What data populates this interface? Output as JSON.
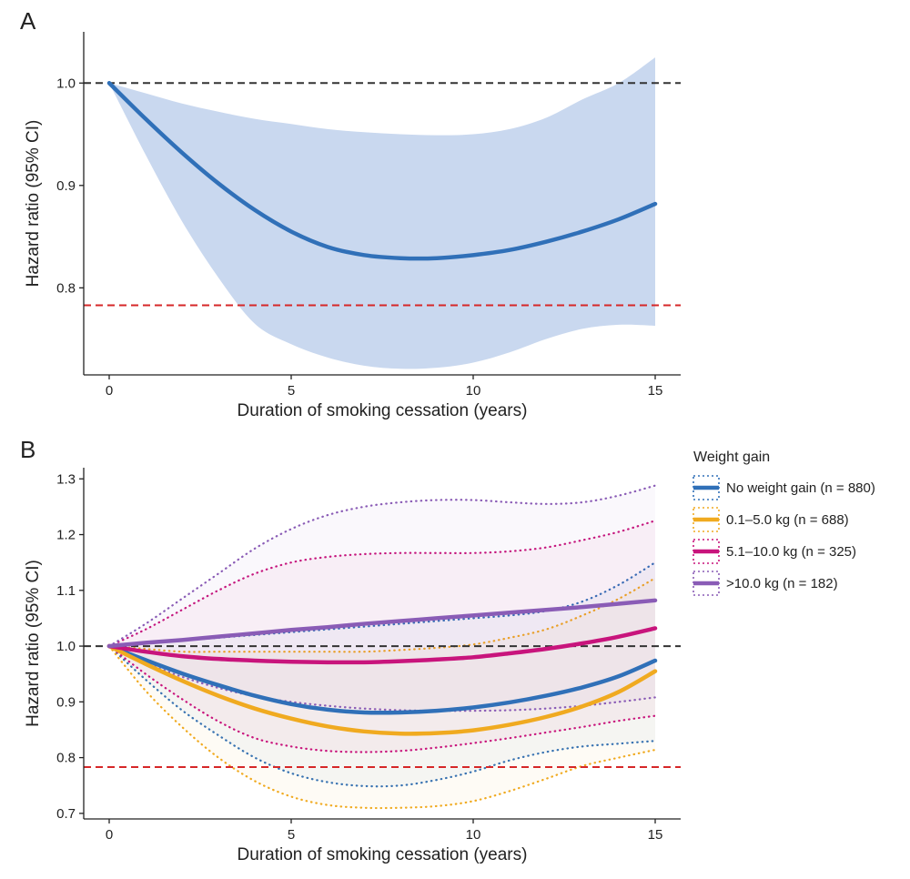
{
  "chart_data": [
    {
      "panel": "A",
      "type": "line",
      "xlabel": "Duration of smoking cessation (years)",
      "ylabel": "Hazard ratio (95% CI)",
      "xlim": [
        -0.7,
        15.7
      ],
      "ylim": [
        0.715,
        1.05
      ],
      "xticks": [
        0,
        5,
        10,
        15
      ],
      "yticks": [
        0.8,
        0.9,
        1.0
      ],
      "ytick_labels": [
        "0.8",
        "0.9",
        "1.0"
      ],
      "reference_lines": [
        {
          "y": 1.0,
          "style": "dashed",
          "color": "#333333"
        },
        {
          "y": 0.783,
          "style": "dashed",
          "color": "#d62728"
        }
      ],
      "series": [
        {
          "color": "#3070b8",
          "ci_color": "#c9d8ef",
          "x": [
            0,
            1,
            2,
            3,
            4,
            5,
            6,
            7,
            8,
            9,
            10,
            11,
            12,
            13,
            14,
            15
          ],
          "y": [
            1.0,
            0.965,
            0.932,
            0.902,
            0.876,
            0.855,
            0.84,
            0.832,
            0.829,
            0.829,
            0.832,
            0.837,
            0.845,
            0.855,
            0.867,
            0.882
          ],
          "lower": [
            1.0,
            0.93,
            0.865,
            0.81,
            0.765,
            0.745,
            0.732,
            0.724,
            0.721,
            0.722,
            0.727,
            0.737,
            0.75,
            0.76,
            0.764,
            0.763
          ],
          "upper": [
            1.0,
            0.99,
            0.98,
            0.972,
            0.965,
            0.96,
            0.955,
            0.952,
            0.95,
            0.949,
            0.95,
            0.955,
            0.966,
            0.984,
            1.0,
            1.025
          ]
        }
      ]
    },
    {
      "panel": "B",
      "type": "line",
      "xlabel": "Duration of smoking cessation (years)",
      "ylabel": "Hazard ratio (95% CI)",
      "xlim": [
        -0.7,
        15.7
      ],
      "ylim": [
        0.69,
        1.32
      ],
      "xticks": [
        0,
        5,
        10,
        15
      ],
      "yticks": [
        0.7,
        0.8,
        0.9,
        1.0,
        1.1,
        1.2,
        1.3
      ],
      "ytick_labels": [
        "0.7",
        "0.8",
        "0.9",
        "1.0",
        "1.1",
        "1.2",
        "1.3"
      ],
      "reference_lines": [
        {
          "y": 1.0,
          "style": "dashed",
          "color": "#333333"
        },
        {
          "y": 0.783,
          "style": "dashed",
          "color": "#d62728"
        }
      ],
      "legend": {
        "title": "Weight gain",
        "placement": "right"
      },
      "series": [
        {
          "name": "No weight gain (n = 880)",
          "color": "#3070b8",
          "x": [
            0,
            1,
            2,
            3,
            4,
            5,
            6,
            7,
            8,
            9,
            10,
            11,
            12,
            13,
            14,
            15
          ],
          "y": [
            1.0,
            0.975,
            0.951,
            0.93,
            0.911,
            0.896,
            0.886,
            0.881,
            0.881,
            0.884,
            0.89,
            0.899,
            0.911,
            0.926,
            0.946,
            0.974
          ],
          "lower": [
            1.0,
            0.94,
            0.885,
            0.84,
            0.8,
            0.772,
            0.756,
            0.749,
            0.75,
            0.76,
            0.775,
            0.795,
            0.81,
            0.82,
            0.825,
            0.83
          ],
          "upper": [
            1.0,
            1.005,
            1.01,
            1.015,
            1.02,
            1.025,
            1.03,
            1.035,
            1.04,
            1.045,
            1.05,
            1.055,
            1.063,
            1.08,
            1.11,
            1.15
          ]
        },
        {
          "name": "0.1–5.0 kg (n = 688)",
          "color": "#f0aa20",
          "x": [
            0,
            1,
            2,
            3,
            4,
            5,
            6,
            7,
            8,
            9,
            10,
            11,
            12,
            13,
            14,
            15
          ],
          "y": [
            1.0,
            0.968,
            0.938,
            0.911,
            0.888,
            0.87,
            0.856,
            0.847,
            0.843,
            0.844,
            0.849,
            0.859,
            0.873,
            0.892,
            0.918,
            0.955
          ],
          "lower": [
            1.0,
            0.92,
            0.855,
            0.8,
            0.758,
            0.73,
            0.715,
            0.71,
            0.71,
            0.713,
            0.722,
            0.74,
            0.762,
            0.785,
            0.8,
            0.814
          ],
          "upper": [
            1.0,
            0.995,
            0.99,
            0.99,
            0.99,
            0.99,
            0.99,
            0.99,
            0.993,
            0.997,
            1.003,
            1.015,
            1.03,
            1.055,
            1.085,
            1.122
          ]
        },
        {
          "name": "5.1–10.0 kg (n = 325)",
          "color": "#c8147c",
          "x": [
            0,
            1,
            2,
            3,
            4,
            5,
            6,
            7,
            8,
            9,
            10,
            11,
            12,
            13,
            14,
            15
          ],
          "y": [
            1.0,
            0.99,
            0.982,
            0.977,
            0.974,
            0.972,
            0.971,
            0.971,
            0.973,
            0.976,
            0.98,
            0.987,
            0.995,
            1.005,
            1.017,
            1.032
          ],
          "lower": [
            1.0,
            0.95,
            0.905,
            0.865,
            0.835,
            0.82,
            0.812,
            0.81,
            0.812,
            0.818,
            0.826,
            0.835,
            0.845,
            0.855,
            0.866,
            0.875
          ],
          "upper": [
            1.0,
            1.03,
            1.065,
            1.1,
            1.13,
            1.15,
            1.16,
            1.165,
            1.167,
            1.167,
            1.167,
            1.17,
            1.177,
            1.19,
            1.205,
            1.225
          ]
        },
        {
          "name": ">10.0 kg (n = 182)",
          "color": "#8a5cb6",
          "x": [
            0,
            1,
            2,
            3,
            4,
            5,
            6,
            7,
            8,
            9,
            10,
            11,
            12,
            13,
            14,
            15
          ],
          "y": [
            1.0,
            1.006,
            1.011,
            1.017,
            1.023,
            1.029,
            1.034,
            1.04,
            1.045,
            1.05,
            1.055,
            1.06,
            1.065,
            1.07,
            1.076,
            1.082
          ],
          "lower": [
            1.0,
            0.97,
            0.945,
            0.925,
            0.91,
            0.9,
            0.893,
            0.888,
            0.885,
            0.884,
            0.884,
            0.885,
            0.888,
            0.893,
            0.9,
            0.908
          ],
          "upper": [
            1.0,
            1.04,
            1.085,
            1.13,
            1.175,
            1.21,
            1.235,
            1.25,
            1.258,
            1.262,
            1.262,
            1.258,
            1.255,
            1.258,
            1.27,
            1.288
          ]
        }
      ]
    }
  ],
  "panels": {
    "a": {
      "letter": "A"
    },
    "b": {
      "letter": "B"
    }
  }
}
